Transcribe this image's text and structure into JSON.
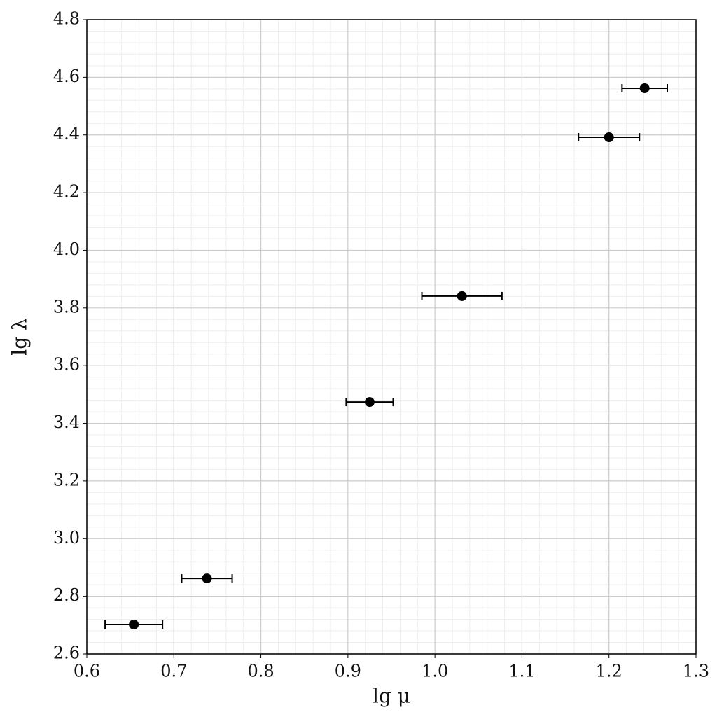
{
  "chart_data": {
    "type": "scatter",
    "x_label": "lg μ",
    "y_label": "lg λ",
    "xlim": [
      0.6,
      1.3
    ],
    "ylim": [
      2.6,
      4.8
    ],
    "xticks": [
      0.6,
      0.7,
      0.8,
      0.9,
      {
        "value": 1,
        "label": "1.0"
      },
      1.1,
      1.2,
      1.3
    ],
    "yticks": [
      2.6,
      2.8,
      {
        "value": 3,
        "label": "3.0"
      },
      3.2,
      3.4,
      3.6,
      3.8,
      {
        "value": 4,
        "label": "4.0"
      },
      4.2,
      4.4,
      4.6,
      4.8
    ],
    "grid": true,
    "minor_grid": true,
    "series": [
      {
        "color": "#000000",
        "x": [
          0.654,
          0.738,
          0.925,
          1.031,
          1.2,
          1.241
        ],
        "values": [
          2.702,
          2.862,
          3.474,
          3.841,
          4.392,
          4.562
        ],
        "xerr": [
          0.033,
          0.029,
          0.027,
          0.046,
          0.035,
          0.026
        ]
      }
    ]
  }
}
